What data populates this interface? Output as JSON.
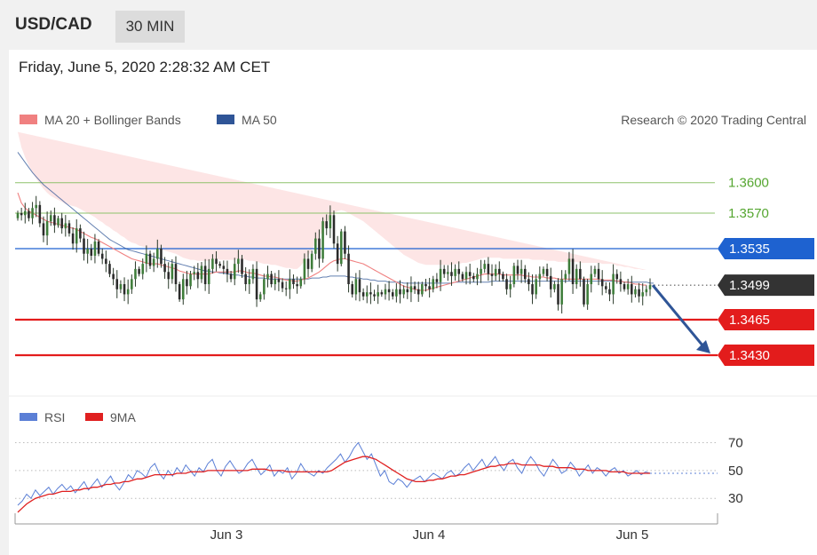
{
  "header": {
    "symbol": "USD/CAD",
    "timeframe": "30 MIN"
  },
  "datetime": "Friday, June 5, 2020 2:28:32 AM CET",
  "legend": {
    "ma20": "MA 20 + Bollinger Bands",
    "ma50": "MA 50",
    "credit": "Research © 2020 Trading Central",
    "rsi": "RSI",
    "rsi_ma": "9MA"
  },
  "colors": {
    "ma20": "#f08080",
    "ma50": "#2f5597",
    "bands": "#fde0e0",
    "resistance_green": "#8dc26b",
    "pivot_blue": "#1e62d0",
    "support_red": "#e31c1c",
    "current": "#333333",
    "rsi": "#5b7fd6",
    "rsi_ma": "#e02020"
  },
  "chart_data": [
    {
      "type": "candlestick",
      "title": "",
      "ylim": [
        1.3395,
        1.364
      ],
      "x_ticks": [
        "Jun 3",
        "Jun 4",
        "Jun 5"
      ],
      "levels": [
        {
          "value": 1.36,
          "label": "1.3600",
          "kind": "resistance"
        },
        {
          "value": 1.357,
          "label": "1.3570",
          "kind": "resistance"
        },
        {
          "value": 1.3535,
          "label": "1.3535",
          "kind": "pivot"
        },
        {
          "value": 1.3499,
          "label": "1.3499",
          "kind": "current"
        },
        {
          "value": 1.3465,
          "label": "1.3465",
          "kind": "support"
        },
        {
          "value": 1.343,
          "label": "1.3430",
          "kind": "support"
        }
      ],
      "close": [
        1.357,
        1.3568,
        1.3572,
        1.3565,
        1.3575,
        1.3578,
        1.356,
        1.3548,
        1.3562,
        1.3568,
        1.3558,
        1.3565,
        1.3555,
        1.356,
        1.355,
        1.354,
        1.3555,
        1.3545,
        1.353,
        1.3535,
        1.3528,
        1.3542,
        1.353,
        1.3525,
        1.352,
        1.351,
        1.3505,
        1.3495,
        1.35,
        1.349,
        1.3495,
        1.3505,
        1.3515,
        1.351,
        1.352,
        1.353,
        1.3518,
        1.3525,
        1.3535,
        1.352,
        1.3512,
        1.3505,
        1.352,
        1.35,
        1.3485,
        1.3505,
        1.3498,
        1.351,
        1.3512,
        1.3505,
        1.3518,
        1.35,
        1.3515,
        1.3525,
        1.352,
        1.3518,
        1.3515,
        1.351,
        1.3505,
        1.352,
        1.3525,
        1.351,
        1.35,
        1.3505,
        1.3515,
        1.3485,
        1.349,
        1.3505,
        1.351,
        1.35,
        1.3505,
        1.3502,
        1.3496,
        1.3495,
        1.3505,
        1.35,
        1.3498,
        1.3505,
        1.3525,
        1.3515,
        1.353,
        1.3545,
        1.3525,
        1.3562,
        1.3555,
        1.3568,
        1.354,
        1.352,
        1.3552,
        1.353,
        1.35,
        1.349,
        1.3505,
        1.3492,
        1.3488,
        1.3492,
        1.349,
        1.3488,
        1.3492,
        1.349,
        1.3495,
        1.3492,
        1.3488,
        1.3495,
        1.349,
        1.3495,
        1.3492,
        1.3498,
        1.3495,
        1.349,
        1.35,
        1.3498,
        1.3495,
        1.3505,
        1.3502,
        1.3515,
        1.351,
        1.3512,
        1.3508,
        1.3515,
        1.351,
        1.3505,
        1.3512,
        1.3508,
        1.3505,
        1.351,
        1.3515,
        1.352,
        1.351,
        1.3508,
        1.3515,
        1.351,
        1.3505,
        1.3495,
        1.35,
        1.3518,
        1.351,
        1.3515,
        1.3505,
        1.35,
        1.349,
        1.3505,
        1.351,
        1.3515,
        1.3508,
        1.3495,
        1.35,
        1.348,
        1.3505,
        1.351,
        1.3525,
        1.35,
        1.3515,
        1.3505,
        1.348,
        1.35,
        1.351,
        1.3515,
        1.3505,
        1.3498,
        1.3495,
        1.349,
        1.351,
        1.3505,
        1.35,
        1.3495,
        1.35,
        1.349,
        1.3495,
        1.3488,
        1.3492,
        1.3495,
        1.3499
      ],
      "ma20": [
        1.359,
        1.358,
        1.3575,
        1.3572,
        1.357,
        1.3568,
        1.3566,
        1.3564,
        1.3562,
        1.3561,
        1.356,
        1.3559,
        1.3558,
        1.3557,
        1.3556,
        1.3555,
        1.3554,
        1.3552,
        1.355,
        1.3548,
        1.3546,
        1.3545,
        1.3543,
        1.3541,
        1.3539,
        1.3537,
        1.3535,
        1.3533,
        1.3531,
        1.3529,
        1.3527,
        1.3525,
        1.3524,
        1.3523,
        1.3522,
        1.3521,
        1.352,
        1.352,
        1.352,
        1.3519,
        1.3518,
        1.3517,
        1.3516,
        1.3515,
        1.3513,
        1.3512,
        1.3511,
        1.351,
        1.351,
        1.351,
        1.351,
        1.351,
        1.351,
        1.3511,
        1.3512,
        1.3512,
        1.3512,
        1.3512,
        1.3512,
        1.3512,
        1.3513,
        1.3513,
        1.3512,
        1.3511,
        1.3511,
        1.351,
        1.3509,
        1.3508,
        1.3508,
        1.3507,
        1.3507,
        1.3506,
        1.3505,
        1.3504,
        1.3504,
        1.3503,
        1.3503,
        1.3504,
        1.3505,
        1.3506,
        1.3508,
        1.351,
        1.3512,
        1.3515,
        1.3518,
        1.3521,
        1.3523,
        1.3524,
        1.3525,
        1.3525,
        1.3524,
        1.3523,
        1.3522,
        1.3521,
        1.352,
        1.3518,
        1.3516,
        1.3514,
        1.3512,
        1.351,
        1.3508,
        1.3506,
        1.3504,
        1.3502,
        1.35,
        1.3498,
        1.3497,
        1.3496,
        1.3495,
        1.3494,
        1.3494,
        1.3494,
        1.3495,
        1.3496,
        1.3497,
        1.3498,
        1.3499,
        1.35,
        1.3501,
        1.3502,
        1.3503,
        1.3504,
        1.3505,
        1.3506,
        1.3507,
        1.3508,
        1.3509,
        1.351,
        1.351,
        1.351,
        1.351,
        1.351,
        1.3509,
        1.3509,
        1.3509,
        1.3509,
        1.3509,
        1.3509,
        1.3508,
        1.3508,
        1.3507,
        1.3507,
        1.3507,
        1.3507,
        1.3506,
        1.3506,
        1.3506,
        1.3505,
        1.3505,
        1.3505,
        1.3505,
        1.3505,
        1.3505,
        1.3505,
        1.3505,
        1.3505,
        1.3505,
        1.3505,
        1.3505,
        1.3504,
        1.3504,
        1.3504,
        1.3504,
        1.3503,
        1.3503,
        1.3502,
        1.3502,
        1.3501,
        1.35,
        1.35,
        1.3499,
        1.3499
      ],
      "ma50": [
        1.363,
        1.3625,
        1.362,
        1.3615,
        1.361,
        1.3606,
        1.3602,
        1.3598,
        1.3595,
        1.3592,
        1.3589,
        1.3586,
        1.3583,
        1.358,
        1.3577,
        1.3574,
        1.3571,
        1.3568,
        1.3565,
        1.3562,
        1.3559,
        1.3556,
        1.3553,
        1.355,
        1.3547,
        1.3544,
        1.3542,
        1.354,
        1.3538,
        1.3536,
        1.3534,
        1.3533,
        1.3532,
        1.3531,
        1.353,
        1.3529,
        1.3528,
        1.3527,
        1.3526,
        1.3525,
        1.3524,
        1.3523,
        1.3522,
        1.3521,
        1.352,
        1.3519,
        1.3518,
        1.3517,
        1.3516,
        1.3515,
        1.3514,
        1.3513,
        1.3513,
        1.3512,
        1.3512,
        1.3511,
        1.3511,
        1.351,
        1.351,
        1.3509,
        1.3509,
        1.3508,
        1.3508,
        1.3507,
        1.3507,
        1.3506,
        1.3506,
        1.3506,
        1.3505,
        1.3505,
        1.3505,
        1.3505,
        1.3505,
        1.3505,
        1.3505,
        1.3505,
        1.3505,
        1.3505,
        1.3505,
        1.3505,
        1.3506,
        1.3506,
        1.3506,
        1.3507,
        1.3507,
        1.3508,
        1.3508,
        1.3508,
        1.3508,
        1.3508,
        1.3507,
        1.3507,
        1.3506,
        1.3506,
        1.3505,
        1.3505,
        1.3504,
        1.3504,
        1.3503,
        1.3503,
        1.3503,
        1.3502,
        1.3502,
        1.3502,
        1.3502,
        1.3501,
        1.3501,
        1.3501,
        1.3501,
        1.3501,
        1.3501,
        1.3501,
        1.3501,
        1.3501,
        1.3501,
        1.3501,
        1.3501,
        1.3501,
        1.3501,
        1.3502,
        1.3502,
        1.3502,
        1.3502,
        1.3502,
        1.3502,
        1.3502,
        1.3502,
        1.3502,
        1.3502,
        1.3503,
        1.3503,
        1.3503,
        1.3503,
        1.3503,
        1.3503,
        1.3503,
        1.3503,
        1.3503,
        1.3503,
        1.3503,
        1.3503,
        1.3503,
        1.3503,
        1.3503,
        1.3503,
        1.3503,
        1.3503,
        1.3503,
        1.3503,
        1.3503,
        1.3503,
        1.3503,
        1.3503,
        1.3503,
        1.3503,
        1.3503,
        1.3503,
        1.3503,
        1.3503,
        1.3503,
        1.3503,
        1.3503,
        1.3503,
        1.3503,
        1.3503,
        1.3502,
        1.3502,
        1.3502,
        1.3502,
        1.3502,
        1.3502,
        1.3502,
        1.3501,
        1.3501
      ],
      "band_width": [
        0.006,
        0.0055,
        0.005,
        0.0045,
        0.004,
        0.0036,
        0.0033,
        0.003,
        0.0028,
        0.0026,
        0.0025,
        0.0024,
        0.0023,
        0.0022,
        0.0022,
        0.0022,
        0.0022,
        0.0022,
        0.0022,
        0.0022,
        0.0022,
        0.0021,
        0.002,
        0.002,
        0.0019,
        0.0019,
        0.0018,
        0.0018,
        0.0017,
        0.0017,
        0.0016,
        0.0016,
        0.0016,
        0.0015,
        0.0015,
        0.0015,
        0.0015,
        0.0015,
        0.0015,
        0.0015,
        0.0015,
        0.0015,
        0.0015,
        0.0015,
        0.0015,
        0.0014,
        0.0014,
        0.0014,
        0.0014,
        0.0013,
        0.0013,
        0.0013,
        0.0013,
        0.0013,
        0.0013,
        0.0012,
        0.0012,
        0.0012,
        0.0012,
        0.0012,
        0.0012,
        0.0012,
        0.0012,
        0.0012,
        0.0012,
        0.0012,
        0.0012,
        0.0012,
        0.0012,
        0.0012,
        0.0012,
        0.0012,
        0.0012,
        0.0012,
        0.0012,
        0.0012,
        0.0012,
        0.0014,
        0.0018,
        0.0022,
        0.0026,
        0.003,
        0.0034,
        0.0038,
        0.0042,
        0.0045,
        0.0047,
        0.0048,
        0.0048,
        0.0047,
        0.0046,
        0.0045,
        0.0044,
        0.0043,
        0.0042,
        0.0041,
        0.004,
        0.0039,
        0.0038,
        0.0037,
        0.0036,
        0.0035,
        0.0034,
        0.0033,
        0.0032,
        0.0031,
        0.003,
        0.0029,
        0.0028,
        0.0027,
        0.0026,
        0.0025,
        0.0024,
        0.0023,
        0.0022,
        0.0021,
        0.002,
        0.0019,
        0.0018,
        0.0018,
        0.0017,
        0.0017,
        0.0016,
        0.0016,
        0.0016,
        0.0016,
        0.0016,
        0.0016,
        0.0016,
        0.0016,
        0.0016,
        0.0016,
        0.0016,
        0.0016,
        0.0016,
        0.0016,
        0.0016,
        0.0016,
        0.0017,
        0.0017,
        0.0017,
        0.0017,
        0.0017,
        0.0017,
        0.0017,
        0.0017,
        0.0017,
        0.0017,
        0.0017,
        0.0017,
        0.0017,
        0.0017,
        0.0017,
        0.0016,
        0.0016,
        0.0016,
        0.0016,
        0.0016,
        0.0016,
        0.0016,
        0.0016,
        0.0016,
        0.0016,
        0.0015,
        0.0015,
        0.0015,
        0.0015,
        0.0015,
        0.0015,
        0.0015,
        0.0015,
        0.0015
      ],
      "forecast_arrow": {
        "from": 1.3499,
        "to": 1.343
      }
    },
    {
      "type": "line",
      "title": "",
      "ylim": [
        18,
        78
      ],
      "y_ticks": [
        70,
        50,
        30
      ],
      "series": [
        {
          "name": "RSI",
          "values": [
            25,
            28,
            33,
            30,
            36,
            32,
            35,
            38,
            33,
            37,
            40,
            36,
            39,
            34,
            38,
            42,
            36,
            40,
            44,
            38,
            42,
            46,
            40,
            36,
            41,
            47,
            44,
            50,
            48,
            45,
            52,
            55,
            48,
            44,
            50,
            46,
            52,
            48,
            54,
            50,
            46,
            52,
            49,
            55,
            58,
            50,
            46,
            53,
            57,
            52,
            48,
            50,
            55,
            58,
            52,
            47,
            50,
            54,
            46,
            50,
            48,
            52,
            44,
            48,
            55,
            50,
            48,
            46,
            50,
            48,
            52,
            55,
            58,
            62,
            56,
            60,
            66,
            70,
            64,
            58,
            62,
            54,
            46,
            50,
            42,
            40,
            44,
            42,
            38,
            42,
            44,
            46,
            42,
            45,
            48,
            46,
            44,
            48,
            50,
            46,
            48,
            52,
            55,
            50,
            54,
            58,
            52,
            56,
            60,
            54,
            50,
            56,
            58,
            52,
            48,
            55,
            60,
            56,
            50,
            46,
            52,
            58,
            54,
            48,
            50,
            56,
            52,
            46,
            50,
            54,
            48,
            52,
            50,
            46,
            50,
            52,
            48,
            50,
            46,
            48,
            50,
            47,
            49,
            48
          ]
        },
        {
          "name": "9MA",
          "values": [
            20,
            23,
            26,
            28,
            30,
            31,
            32,
            33,
            33,
            34,
            35,
            35,
            35,
            36,
            36,
            37,
            37,
            38,
            38,
            39,
            40,
            40,
            41,
            41,
            42,
            42,
            43,
            44,
            44,
            45,
            46,
            47,
            47,
            47,
            47,
            47,
            48,
            48,
            48,
            49,
            49,
            49,
            49,
            50,
            50,
            50,
            50,
            50,
            50,
            50,
            50,
            50,
            50,
            51,
            51,
            51,
            51,
            50,
            50,
            50,
            50,
            49,
            49,
            49,
            49,
            49,
            49,
            49,
            49,
            49,
            49,
            50,
            52,
            54,
            56,
            57,
            58,
            59,
            60,
            60,
            59,
            58,
            56,
            54,
            52,
            50,
            48,
            46,
            44,
            43,
            42,
            42,
            42,
            43,
            43,
            44,
            44,
            45,
            46,
            46,
            47,
            47,
            48,
            49,
            50,
            51,
            52,
            53,
            53,
            54,
            54,
            55,
            55,
            55,
            54,
            54,
            54,
            54,
            54,
            53,
            53,
            53,
            52,
            52,
            52,
            52,
            51,
            51,
            51,
            50,
            50,
            50,
            50,
            50,
            49,
            49,
            49,
            49,
            48,
            48,
            48,
            48,
            48,
            48
          ]
        }
      ]
    }
  ]
}
